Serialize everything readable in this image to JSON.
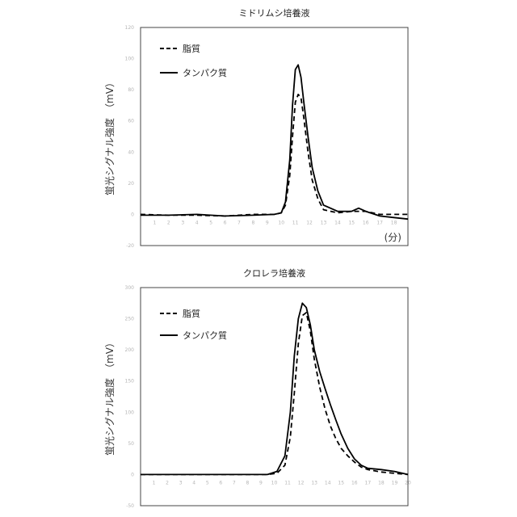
{
  "chart_data": [
    {
      "type": "line",
      "title": "ミドリムシ培養液",
      "ylabel": "蛍光シグナル強度　（mV）",
      "x_unit_label": "(分)",
      "xlim": [
        0,
        19
      ],
      "ylim": [
        -20,
        120
      ],
      "x_ticks": [
        1,
        2,
        3,
        4,
        5,
        6,
        7,
        8,
        9,
        10,
        11,
        12,
        13,
        14,
        15,
        16,
        17,
        18
      ],
      "y_ticks": [
        -20,
        0,
        20,
        40,
        60,
        80,
        100,
        120
      ],
      "y_tick_labels": [
        "-20",
        "0",
        "20",
        "40",
        "60",
        "80",
        "100",
        "120"
      ],
      "legend_placement": "top-left",
      "grid": false,
      "series": [
        {
          "name": "脂質",
          "style": "dashed",
          "color": "#000000",
          "x": [
            0,
            2,
            4,
            6,
            8,
            9.5,
            10,
            10.3,
            10.6,
            10.8,
            11,
            11.2,
            11.4,
            11.6,
            11.9,
            12.2,
            12.6,
            13,
            14,
            15,
            16,
            17,
            18,
            19
          ],
          "y": [
            0,
            -0.5,
            -0.5,
            -1,
            0,
            0,
            1,
            6,
            25,
            50,
            72,
            77,
            75,
            62,
            40,
            22,
            10,
            3,
            1,
            2,
            2,
            0,
            0,
            0
          ]
        },
        {
          "name": "タンパク質",
          "style": "solid",
          "color": "#000000",
          "x": [
            0,
            2,
            4,
            6,
            8,
            9.5,
            10,
            10.3,
            10.6,
            10.8,
            11,
            11.2,
            11.4,
            11.6,
            11.9,
            12.2,
            12.6,
            13,
            14,
            15,
            15.5,
            16,
            17,
            18,
            19
          ],
          "y": [
            -0.5,
            -0.5,
            0,
            -1,
            -0.5,
            0,
            1,
            8,
            35,
            70,
            93,
            96,
            88,
            72,
            50,
            30,
            15,
            6,
            2,
            2,
            4,
            2,
            -1,
            -2,
            -3
          ]
        }
      ]
    },
    {
      "type": "line",
      "title": "クロレラ培養液",
      "ylabel": "蛍光シグナル強度　（mV）",
      "xlim": [
        0,
        20
      ],
      "ylim": [
        -50,
        300
      ],
      "x_ticks": [
        1,
        2,
        3,
        4,
        5,
        6,
        7,
        8,
        9,
        10,
        11,
        12,
        13,
        14,
        15,
        16,
        17,
        18,
        19,
        20
      ],
      "y_ticks": [
        -50,
        0,
        50,
        100,
        150,
        200,
        250,
        300
      ],
      "y_tick_labels": [
        "-50",
        "0",
        "50",
        "100",
        "150",
        "200",
        "250",
        "300"
      ],
      "legend_placement": "top-left",
      "grid": false,
      "series": [
        {
          "name": "脂質",
          "style": "dashed",
          "color": "#000000",
          "x": [
            0,
            2,
            4,
            6,
            8,
            9.5,
            10.2,
            10.8,
            11.2,
            11.5,
            11.8,
            12.1,
            12.4,
            12.7,
            13.0,
            13.4,
            13.8,
            14.2,
            14.6,
            15.0,
            15.5,
            16,
            16.5,
            17,
            18,
            19,
            20
          ],
          "y": [
            0,
            0,
            0,
            0,
            0,
            0,
            2,
            15,
            60,
            130,
            210,
            255,
            260,
            230,
            185,
            140,
            105,
            78,
            58,
            42,
            30,
            20,
            12,
            8,
            4,
            2,
            0
          ]
        },
        {
          "name": "タンパク質",
          "style": "solid",
          "color": "#000000",
          "x": [
            0,
            2,
            4,
            6,
            8,
            9.5,
            10.2,
            10.8,
            11.2,
            11.5,
            11.8,
            12.1,
            12.4,
            12.7,
            13.0,
            13.4,
            13.8,
            14.2,
            14.6,
            15.0,
            15.5,
            16,
            16.5,
            17,
            18,
            19,
            20
          ],
          "y": [
            0,
            0,
            0,
            0,
            0,
            0,
            5,
            30,
            100,
            190,
            250,
            275,
            268,
            240,
            200,
            165,
            138,
            112,
            88,
            65,
            42,
            25,
            15,
            10,
            8,
            5,
            0
          ]
        }
      ]
    }
  ]
}
